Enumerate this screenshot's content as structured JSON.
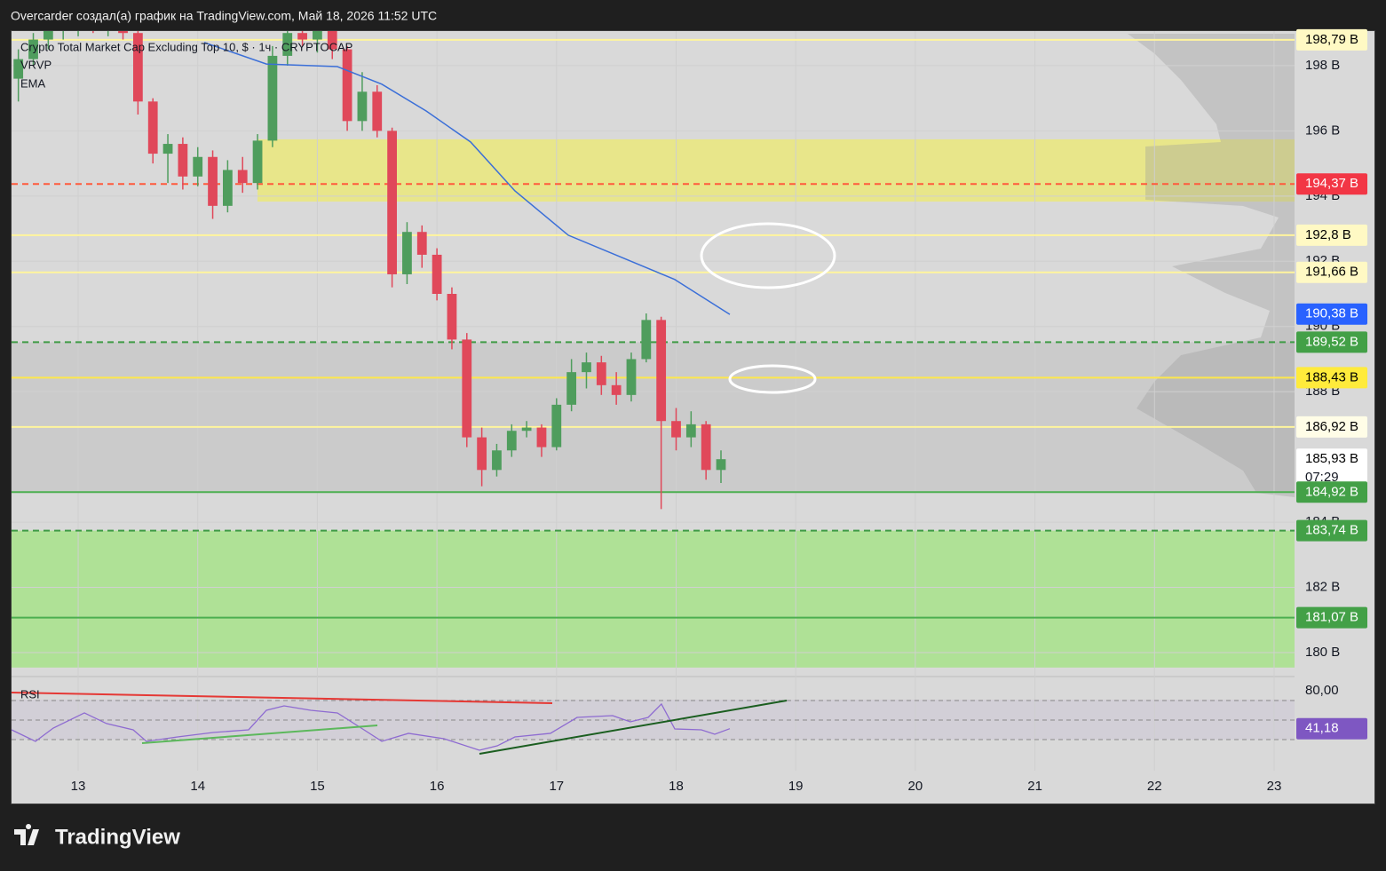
{
  "header": "Overcarder создал(а) график на TradingView.com, Май 18, 2026 11:52 UTC",
  "brand": "TradingView",
  "chart_data": {
    "type": "candlestick",
    "title": "Crypto Total Market Cap Excluding Top 10, $ · 1ч · CRYPTOCAP",
    "profile_name": "VRVP",
    "xlim": [
      12.443,
      23.171
    ],
    "xticks": [
      13,
      14,
      15,
      16,
      17,
      18,
      19,
      20,
      21,
      22,
      23
    ],
    "ylim": [
      179.4,
      199.06
    ],
    "yticks": [
      {
        "value": 180,
        "label": "180 B"
      },
      {
        "value": 182,
        "label": "182 B"
      },
      {
        "value": 184,
        "label": "184 B"
      },
      {
        "value": 188,
        "label": "188 B"
      },
      {
        "value": 190,
        "label": "190 B"
      },
      {
        "value": 192,
        "label": "192 B"
      },
      {
        "value": 194,
        "label": "194 B"
      },
      {
        "value": 196,
        "label": "196 B"
      },
      {
        "value": 198,
        "label": "198 B"
      }
    ],
    "up_color": "#4f9d5d",
    "down_color": "#e0485a",
    "x": [
      12.5,
      12.625,
      12.75,
      12.875,
      13.0,
      13.125,
      13.25,
      13.375,
      13.5,
      13.625,
      13.75,
      13.875,
      14.0,
      14.125,
      14.25,
      14.375,
      14.5,
      14.625,
      14.75,
      14.875,
      15.0,
      15.125,
      15.25,
      15.375,
      15.5,
      15.625,
      15.75,
      15.875,
      16.0,
      16.125,
      16.25,
      16.375,
      16.5,
      16.625,
      16.75,
      16.875,
      17.0,
      17.125,
      17.25,
      17.375,
      17.5,
      17.625,
      17.75,
      17.875,
      18.0,
      18.125,
      18.25,
      18.375
    ],
    "open": [
      197.6,
      198.2,
      198.8,
      199.1,
      199.2,
      199.3,
      199.2,
      199.4,
      199.0,
      196.9,
      195.3,
      195.6,
      194.6,
      195.2,
      193.7,
      194.8,
      194.4,
      195.7,
      198.3,
      199.0,
      198.8,
      199.1,
      198.5,
      196.3,
      197.2,
      196.0,
      191.6,
      192.9,
      192.2,
      191.0,
      189.6,
      186.6,
      185.6,
      186.2,
      186.8,
      186.9,
      186.3,
      187.6,
      188.6,
      188.9,
      188.2,
      187.9,
      189.0,
      190.2,
      187.1,
      186.6,
      187.0,
      185.6
    ],
    "high": [
      198.5,
      199.0,
      199.3,
      199.4,
      199.5,
      199.6,
      199.5,
      199.6,
      199.3,
      197.0,
      195.9,
      195.8,
      195.5,
      195.4,
      195.1,
      195.2,
      195.9,
      198.6,
      199.3,
      199.5,
      199.4,
      199.3,
      198.6,
      197.8,
      197.4,
      196.1,
      193.2,
      193.1,
      192.4,
      191.2,
      189.8,
      186.9,
      186.4,
      187.0,
      187.1,
      187.0,
      187.8,
      189.0,
      189.2,
      189.1,
      188.6,
      189.2,
      190.4,
      190.3,
      187.5,
      187.4,
      187.1,
      186.2
    ],
    "low": [
      196.9,
      198.0,
      198.5,
      198.8,
      198.9,
      199.0,
      198.9,
      198.8,
      196.5,
      195.0,
      194.4,
      194.2,
      194.3,
      193.3,
      193.5,
      194.1,
      194.2,
      195.5,
      198.0,
      198.6,
      198.4,
      198.2,
      196.0,
      196.0,
      195.8,
      191.2,
      191.3,
      191.8,
      190.8,
      189.3,
      186.3,
      185.1,
      185.4,
      186.0,
      186.6,
      186.0,
      186.2,
      187.4,
      188.1,
      187.9,
      187.6,
      187.7,
      188.9,
      184.4,
      186.2,
      186.3,
      185.3,
      185.2
    ],
    "close": [
      198.2,
      198.8,
      199.1,
      199.2,
      199.3,
      199.2,
      199.4,
      199.0,
      196.9,
      195.3,
      195.6,
      194.6,
      195.2,
      193.7,
      194.8,
      194.4,
      195.7,
      198.3,
      199.0,
      198.8,
      199.1,
      198.5,
      196.3,
      197.2,
      196.0,
      191.6,
      192.9,
      192.2,
      191.0,
      189.6,
      186.6,
      185.6,
      186.2,
      186.8,
      186.9,
      186.3,
      187.6,
      188.6,
      188.9,
      188.2,
      187.9,
      189.0,
      190.2,
      187.1,
      186.6,
      187.0,
      185.6,
      185.93
    ],
    "ema": {
      "name": "EMA",
      "color": "#3b6fd8",
      "x": [
        14.054,
        14.574,
        15.167,
        15.539,
        15.91,
        16.281,
        16.652,
        17.098,
        17.543,
        17.989,
        18.449
      ],
      "values": [
        198.71,
        198.05,
        197.97,
        197.43,
        196.61,
        195.66,
        194.16,
        192.8,
        192.12,
        191.44,
        190.37
      ]
    },
    "zones": [
      {
        "from": 193.83,
        "to": 195.74,
        "color": "#e8e68a",
        "x_start": 14.5
      },
      {
        "from": 184.92,
        "to": 189.52,
        "color": "#cbcbcb",
        "x_start": 12.443
      },
      {
        "from": 179.54,
        "to": 183.74,
        "color": "#afe196",
        "x_start": 12.443
      }
    ],
    "levels": [
      {
        "value": 198.79,
        "label": "198,79 B",
        "style": "solid",
        "color": "#fff59d",
        "label_color": "#fff9c4",
        "text_color": "#000000"
      },
      {
        "value": 194.37,
        "label": "194,37 B",
        "style": "dashed",
        "color": "#ff5a3c",
        "label_color": "#f23645",
        "text_color": "#ffffff"
      },
      {
        "value": 192.8,
        "label": "192,8 B",
        "style": "solid",
        "color": "#fff59d",
        "label_color": "#fff9c4",
        "text_color": "#000000"
      },
      {
        "value": 191.66,
        "label": "191,66 B",
        "style": "solid",
        "color": "#fff59d",
        "label_color": "#fff9c4",
        "text_color": "#000000"
      },
      {
        "value": 190.38,
        "label": "190,38 B",
        "style": "none",
        "color": "#2962ff",
        "label_color": "#2962ff",
        "text_color": "#ffffff"
      },
      {
        "value": 189.52,
        "label": "189,52 B",
        "style": "dashed",
        "color": "#3f9b46",
        "label_color": "#43a047",
        "text_color": "#ffffff"
      },
      {
        "value": 188.43,
        "label": "188,43 B",
        "style": "solid",
        "color": "#fde74c",
        "label_color": "#ffeb3b",
        "text_color": "#000000"
      },
      {
        "value": 186.92,
        "label": "186,92 B",
        "style": "solid",
        "color": "#fff59d",
        "label_color": "#fffde7",
        "text_color": "#000000"
      },
      {
        "value": 185.93,
        "label": "185,93 B",
        "countdown": "07:29",
        "style": "none",
        "color": "#ffffff",
        "label_color": "#ffffff",
        "text_color": "#000000"
      },
      {
        "value": 184.92,
        "label": "184,92 B",
        "style": "solid",
        "color": "#4caf50",
        "label_color": "#43a047",
        "text_color": "#ffffff"
      },
      {
        "value": 183.74,
        "label": "183,74 B",
        "style": "dashed",
        "color": "#3f9b46",
        "label_color": "#43a047",
        "text_color": "#ffffff"
      },
      {
        "value": 181.07,
        "label": "181,07 B",
        "style": "solid",
        "color": "#4caf50",
        "label_color": "#43a047",
        "text_color": "#ffffff"
      }
    ],
    "rsi": {
      "name": "RSI",
      "color": "#8e6bd1",
      "ylim": [
        -1.8,
        94.5
      ],
      "yticks": [
        {
          "value": 80,
          "label": "80,00"
        }
      ],
      "levels": [
        70,
        50,
        30
      ],
      "x": [
        12.443,
        12.643,
        12.792,
        13.052,
        13.237,
        13.46,
        13.571,
        13.831,
        14.128,
        14.425,
        14.574,
        14.722,
        14.945,
        15.167,
        15.39,
        15.539,
        15.762,
        16.059,
        16.355,
        16.504,
        16.652,
        16.949,
        17.172,
        17.469,
        17.617,
        17.766,
        17.877,
        17.989,
        18.211,
        18.323,
        18.449
      ],
      "values": [
        40.0,
        28.2,
        41.8,
        57.3,
        46.4,
        40.0,
        28.2,
        32.7,
        37.3,
        40.0,
        60.0,
        64.5,
        60.0,
        57.3,
        40.0,
        28.2,
        36.4,
        30.9,
        19.1,
        23.6,
        32.7,
        36.4,
        52.7,
        54.5,
        48.2,
        52.7,
        66.4,
        40.9,
        40.0,
        35.5,
        41.18
      ],
      "last_label": "41,18",
      "label_color": "#7e57c2"
    }
  }
}
